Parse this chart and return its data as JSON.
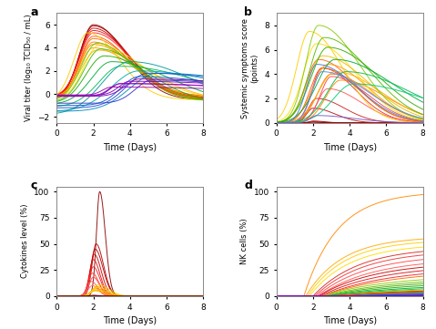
{
  "panel_a": {
    "label": "a",
    "xlabel": "Time (Days)",
    "ylabel": "Viral titer (log₁₀ TCID₅₀ / mL)",
    "xlim": [
      0,
      8
    ],
    "ylim": [
      -2.5,
      7
    ],
    "yticks": [
      -2,
      0,
      2,
      4,
      6
    ],
    "xticks": [
      0,
      2,
      4,
      6,
      8
    ]
  },
  "panel_b": {
    "label": "b",
    "xlabel": "Time (Days)",
    "ylabel": "Systemic symptoms score\n(points)",
    "xlim": [
      0,
      8
    ],
    "ylim": [
      0,
      9
    ],
    "yticks": [
      0,
      2,
      4,
      6,
      8
    ],
    "xticks": [
      0,
      2,
      4,
      6,
      8
    ]
  },
  "panel_c": {
    "label": "c",
    "xlabel": "Time (Days)",
    "ylabel": "Cytokines level (%)",
    "xlim": [
      0,
      8
    ],
    "ylim": [
      0,
      105
    ],
    "yticks": [
      0,
      25,
      50,
      75,
      100
    ],
    "xticks": [
      0,
      2,
      4,
      6,
      8
    ]
  },
  "panel_d": {
    "label": "d",
    "xlabel": "Time (Days)",
    "ylabel": "NK cells (%)",
    "xlim": [
      0,
      8
    ],
    "ylim": [
      0,
      105
    ],
    "yticks": [
      0,
      25,
      50,
      75,
      100
    ],
    "xticks": [
      0,
      2,
      4,
      6,
      8
    ]
  }
}
